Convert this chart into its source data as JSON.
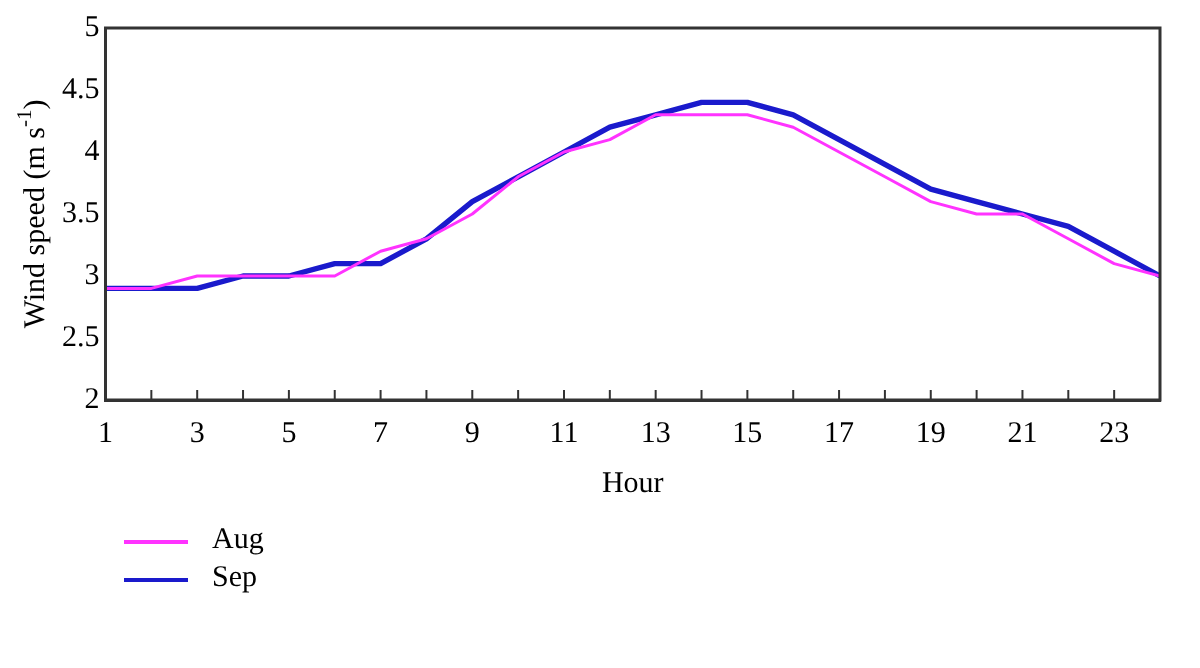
{
  "chart_data": {
    "type": "line",
    "xlabel": "Hour",
    "ylabel": "Wind speed (m s$^{-1}$)",
    "x": [
      1,
      2,
      3,
      4,
      5,
      6,
      7,
      8,
      9,
      10,
      11,
      12,
      13,
      14,
      15,
      16,
      17,
      18,
      19,
      20,
      21,
      22,
      23,
      24
    ],
    "series": [
      {
        "name": "Aug",
        "color": "#ff33ff",
        "values": [
          2.9,
          2.9,
          3.0,
          3.0,
          3.0,
          3.0,
          3.2,
          3.3,
          3.5,
          3.8,
          4.0,
          4.1,
          4.3,
          4.3,
          4.3,
          4.2,
          4.0,
          3.8,
          3.6,
          3.5,
          3.5,
          3.3,
          3.1,
          3.0
        ]
      },
      {
        "name": "Sep",
        "color": "#1a1acc",
        "values": [
          2.9,
          2.9,
          2.9,
          3.0,
          3.0,
          3.1,
          3.1,
          3.3,
          3.6,
          3.8,
          4.0,
          4.2,
          4.3,
          4.4,
          4.4,
          4.3,
          4.1,
          3.9,
          3.7,
          3.6,
          3.5,
          3.4,
          3.2,
          3.0
        ]
      }
    ],
    "xlim": [
      1,
      24
    ],
    "xticks": [
      1,
      {
        "value": 2,
        "label": null
      },
      3,
      {
        "value": 4,
        "label": null
      },
      5,
      {
        "value": 6,
        "label": null
      },
      7,
      {
        "value": 8,
        "label": null
      },
      9,
      {
        "value": 10,
        "label": null
      },
      11,
      {
        "value": 12,
        "label": null
      },
      13,
      {
        "value": 14,
        "label": null
      },
      15,
      {
        "value": 16,
        "label": null
      },
      17,
      {
        "value": 18,
        "label": null
      },
      19,
      {
        "value": 20,
        "label": null
      },
      21,
      {
        "value": 22,
        "label": null
      },
      23,
      {
        "value": 24,
        "label": null
      }
    ],
    "ylim": [
      2,
      5
    ],
    "yticks": [
      2,
      2.5,
      3,
      3.5,
      4,
      4.5,
      5
    ],
    "grid": false,
    "legend": "bottom left",
    "marker": "none",
    "line_style": "solid"
  }
}
